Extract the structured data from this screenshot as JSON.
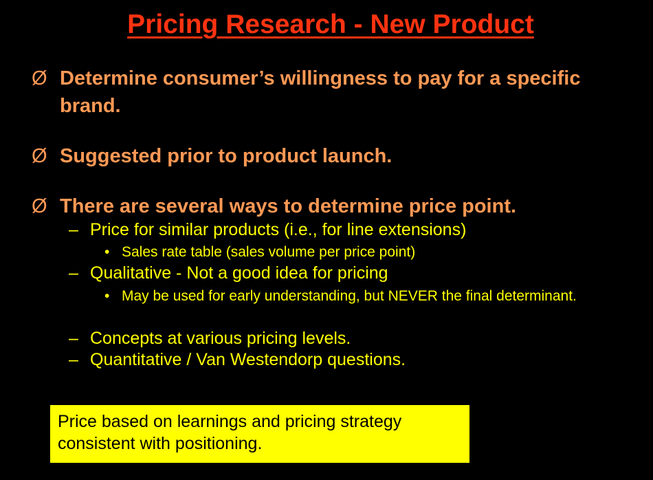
{
  "slide": {
    "title": "Pricing Research - New Product",
    "bullet_glyph": "Ø",
    "points": [
      "Determine consumer’s willingness to pay for a specific brand.",
      "Suggested prior to product launch.",
      "There are several ways to determine price point."
    ],
    "subpoints": {
      "dash": "–",
      "dot": "•",
      "similar_products": "Price for similar products (i.e., for line extensions)",
      "sales_rate_table": "Sales rate table (sales volume per price point)",
      "qualitative": "Qualitative  - Not a good idea for pricing",
      "early_understanding": "May be used for early understanding, but NEVER the final determinant.",
      "concepts": "Concepts at various pricing levels.",
      "quantitative": "Quantitative / Van Westendorp questions."
    },
    "callout": "Price based on learnings and pricing strategy consistent with positioning.",
    "colors": {
      "background": "#000000",
      "title": "#FF3311",
      "primary_text": "#FF9955",
      "secondary_text": "#FFFF00",
      "callout_bg": "#FFFF00"
    }
  }
}
